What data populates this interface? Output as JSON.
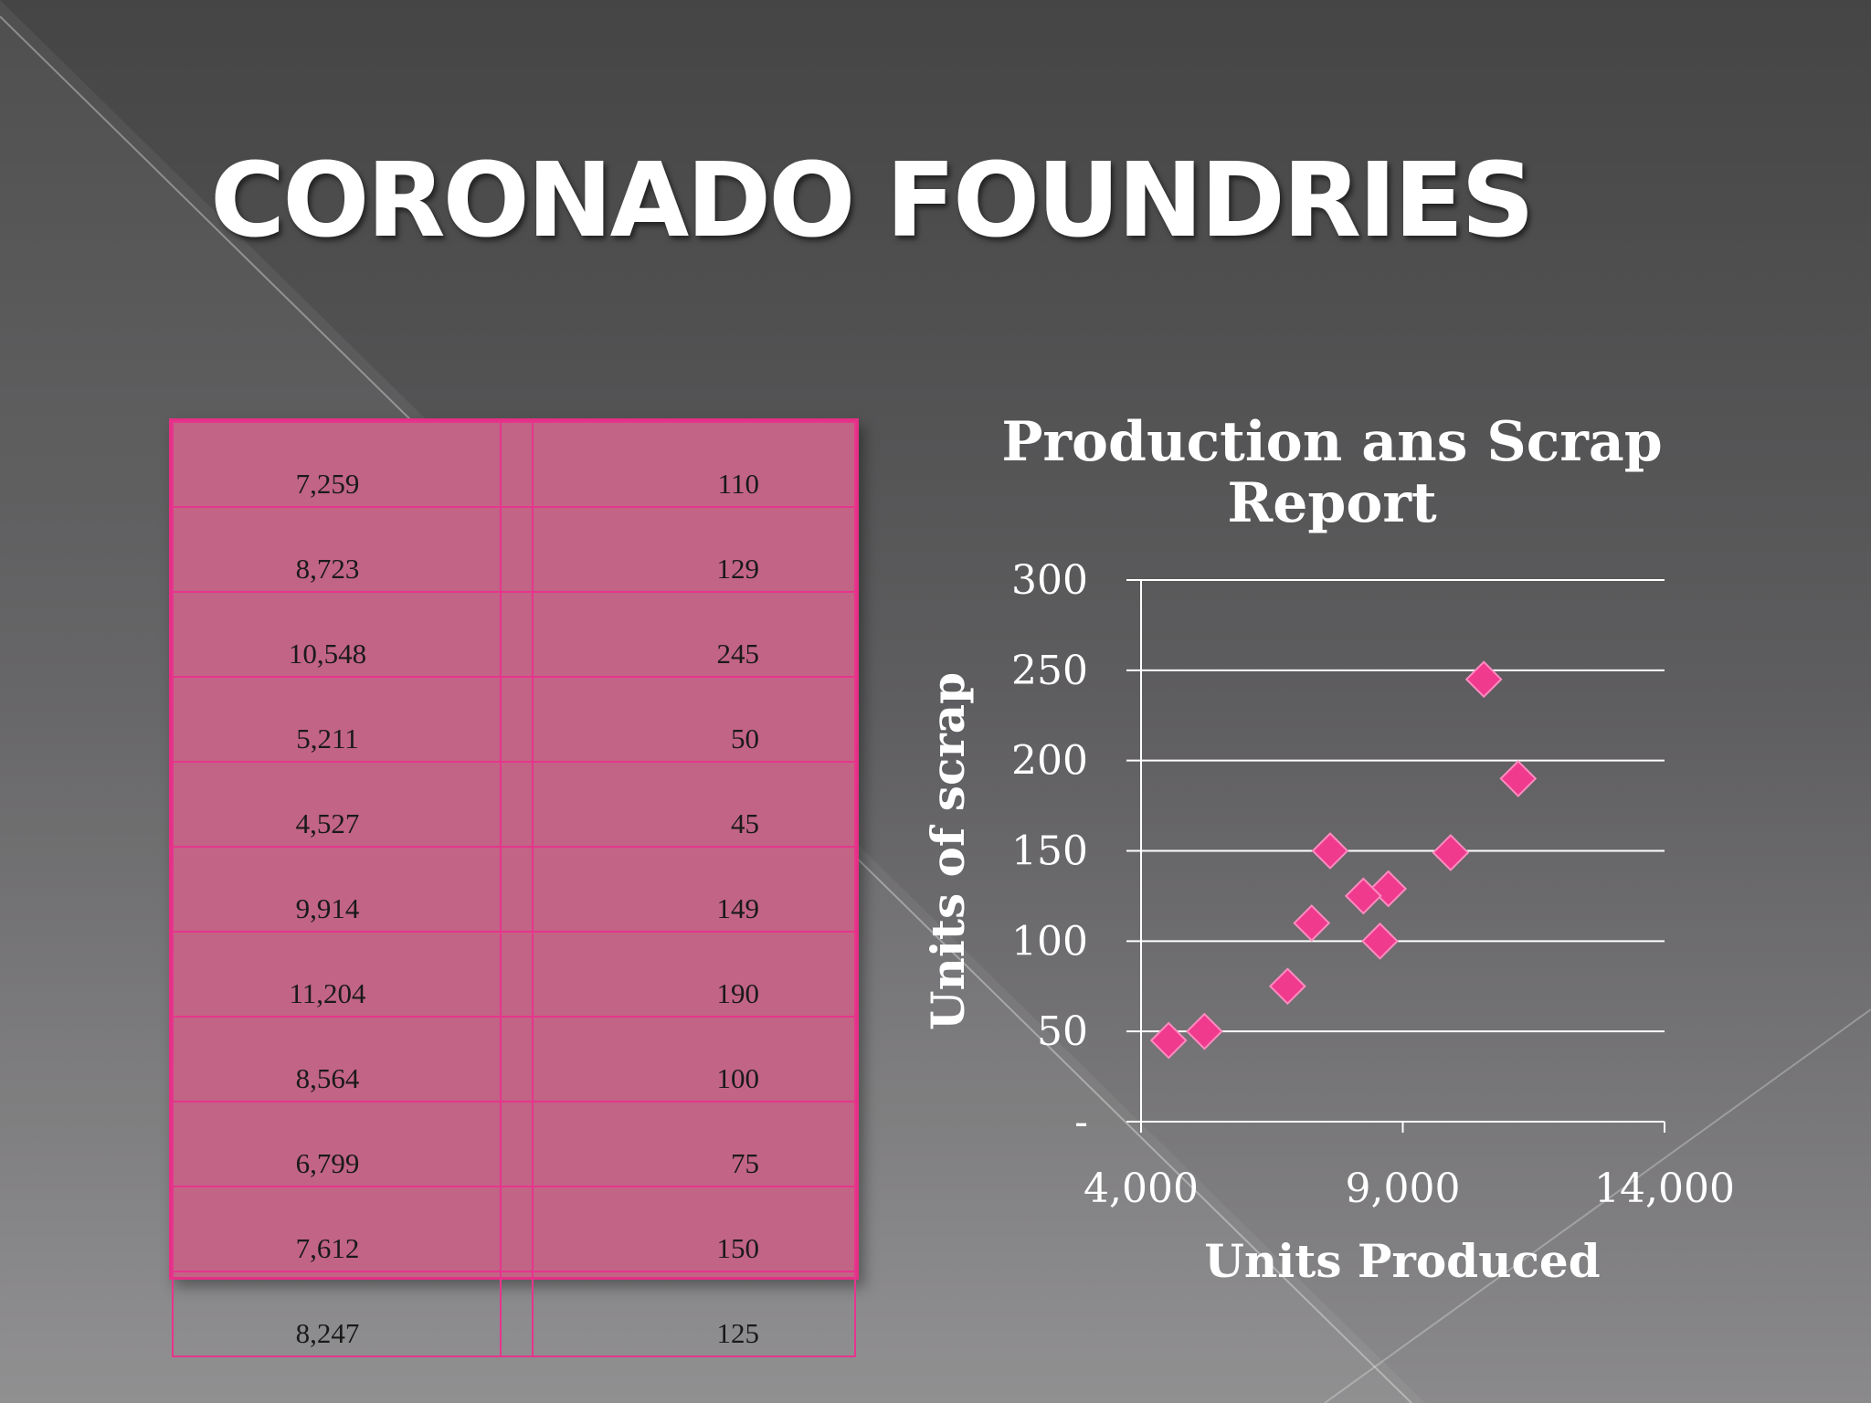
{
  "slide": {
    "title": "CORONADO FOUNDRIES"
  },
  "table": {
    "rows": [
      {
        "units": "7,259",
        "scrap": "110"
      },
      {
        "units": "8,723",
        "scrap": "129"
      },
      {
        "units": "10,548",
        "scrap": "245"
      },
      {
        "units": "5,211",
        "scrap": "50"
      },
      {
        "units": "4,527",
        "scrap": "45"
      },
      {
        "units": "9,914",
        "scrap": "149"
      },
      {
        "units": "11,204",
        "scrap": "190"
      },
      {
        "units": "8,564",
        "scrap": "100"
      },
      {
        "units": "6,799",
        "scrap": "75"
      },
      {
        "units": "7,612",
        "scrap": "150"
      },
      {
        "units": "8,247",
        "scrap": "125"
      }
    ]
  },
  "chart_data": {
    "type": "scatter",
    "title": "Production ans Scrap Report",
    "title_lines": [
      "Production ans Scrap",
      "Report"
    ],
    "xlabel": "Units Produced",
    "ylabel": "Units of scrap",
    "xlim": [
      4000,
      14000
    ],
    "ylim": [
      0,
      300
    ],
    "x_ticks": [
      4000,
      9000,
      14000
    ],
    "x_tick_labels": [
      "4,000",
      "9,000",
      "14,000"
    ],
    "y_ticks": [
      0,
      50,
      100,
      150,
      200,
      250,
      300
    ],
    "y_tick_labels": [
      "-",
      "50",
      "100",
      "150",
      "200",
      "250",
      "300"
    ],
    "grid": true,
    "marker": "diamond",
    "marker_color": "#ef3a8e",
    "series": [
      {
        "points": [
          {
            "x": 7259,
            "y": 110
          },
          {
            "x": 8723,
            "y": 129
          },
          {
            "x": 10548,
            "y": 245
          },
          {
            "x": 5211,
            "y": 50
          },
          {
            "x": 4527,
            "y": 45
          },
          {
            "x": 9914,
            "y": 149
          },
          {
            "x": 11204,
            "y": 190
          },
          {
            "x": 8564,
            "y": 100
          },
          {
            "x": 6799,
            "y": 75
          },
          {
            "x": 7612,
            "y": 150
          },
          {
            "x": 8247,
            "y": 125
          }
        ]
      }
    ]
  },
  "colors": {
    "table_fill": "#c26485",
    "table_border": "#e62f86",
    "marker": "#ef3a8e",
    "text": "#ffffff"
  }
}
